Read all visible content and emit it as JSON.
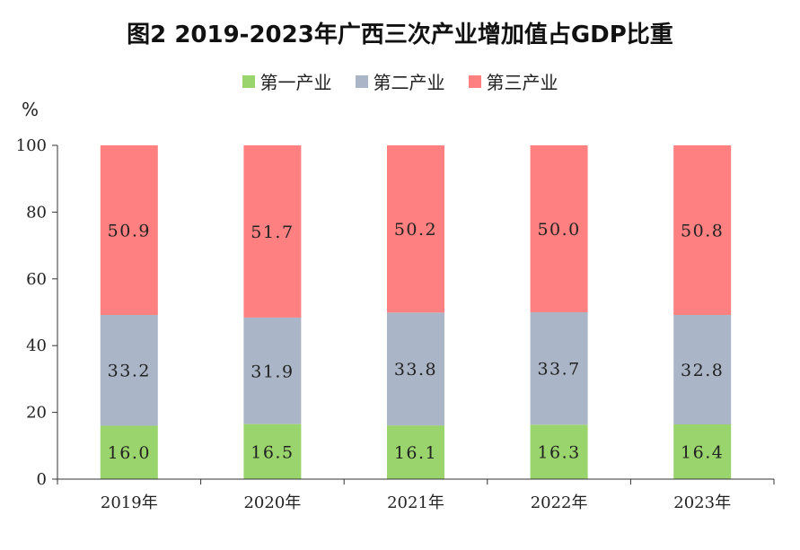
{
  "chart_data": {
    "type": "bar",
    "stacked": true,
    "title": "图2 2019-2023年广西三次产业增加值占GDP比重",
    "ylabel": "%",
    "ylim": [
      0,
      100
    ],
    "yticks": [
      0,
      20,
      40,
      60,
      80,
      100
    ],
    "categories": [
      "2019年",
      "2020年",
      "2021年",
      "2022年",
      "2023年"
    ],
    "legend_position": "top-center",
    "grid": false,
    "series": [
      {
        "name": "第一产业",
        "color": "#9ad46c",
        "values": [
          16.0,
          16.5,
          16.1,
          16.3,
          16.4
        ]
      },
      {
        "name": "第二产业",
        "color": "#aab6c8",
        "values": [
          33.2,
          31.9,
          33.8,
          33.7,
          32.8
        ]
      },
      {
        "name": "第三产业",
        "color": "#ff8080",
        "values": [
          50.9,
          51.7,
          50.2,
          50.0,
          50.8
        ]
      }
    ]
  }
}
